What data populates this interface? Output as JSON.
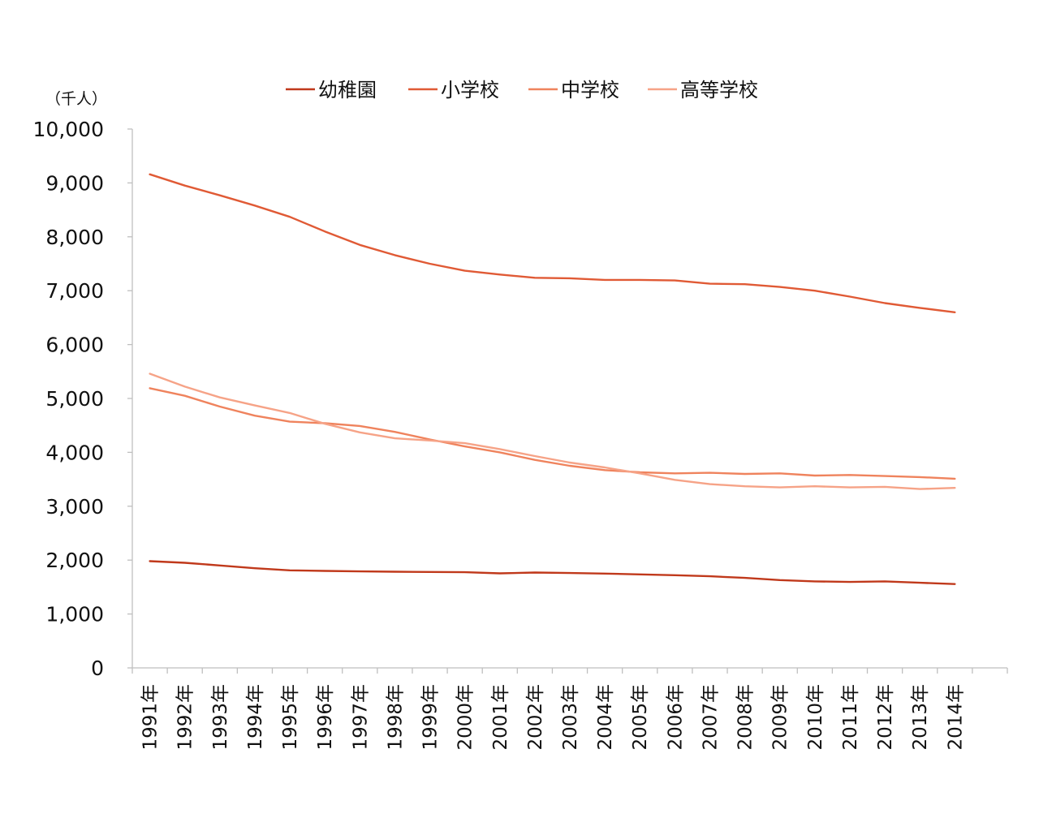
{
  "chart_data": {
    "type": "line",
    "unit_label": "（千人）",
    "ylim": [
      0,
      10000
    ],
    "y_ticks": [
      "0",
      "1,000",
      "2,000",
      "3,000",
      "4,000",
      "5,000",
      "6,000",
      "7,000",
      "8,000",
      "9,000",
      "10,000"
    ],
    "y_tick_values": [
      0,
      1000,
      2000,
      3000,
      4000,
      5000,
      6000,
      7000,
      8000,
      9000,
      10000
    ],
    "categories": [
      "1991年",
      "1992年",
      "1993年",
      "1994年",
      "1995年",
      "1996年",
      "1997年",
      "1998年",
      "1999年",
      "2000年",
      "2001年",
      "2002年",
      "2003年",
      "2004年",
      "2005年",
      "2006年",
      "2007年",
      "2008年",
      "2009年",
      "2010年",
      "2011年",
      "2012年",
      "2013年",
      "2014年"
    ],
    "grid": false,
    "legend_position": "top",
    "series": [
      {
        "name": "幼稚園",
        "color": "#c0391b",
        "values": [
          1980,
          1950,
          1900,
          1850,
          1810,
          1800,
          1790,
          1785,
          1780,
          1775,
          1755,
          1770,
          1760,
          1750,
          1735,
          1720,
          1700,
          1670,
          1630,
          1605,
          1595,
          1605,
          1580,
          1555
        ]
      },
      {
        "name": "小学校",
        "color": "#e05a35",
        "values": [
          9160,
          8950,
          8770,
          8580,
          8370,
          8100,
          7850,
          7660,
          7500,
          7370,
          7300,
          7240,
          7230,
          7200,
          7200,
          7190,
          7130,
          7120,
          7070,
          7000,
          6890,
          6770,
          6680,
          6600
        ]
      },
      {
        "name": "中学校",
        "color": "#ef835d",
        "values": [
          5190,
          5050,
          4850,
          4680,
          4570,
          4540,
          4490,
          4380,
          4240,
          4110,
          4000,
          3860,
          3750,
          3670,
          3630,
          3610,
          3620,
          3600,
          3610,
          3570,
          3580,
          3560,
          3540,
          3510
        ]
      },
      {
        "name": "高等学校",
        "color": "#f6a387",
        "values": [
          5460,
          5220,
          5020,
          4870,
          4730,
          4530,
          4370,
          4260,
          4220,
          4170,
          4060,
          3930,
          3810,
          3720,
          3610,
          3490,
          3410,
          3370,
          3350,
          3370,
          3350,
          3360,
          3320,
          3340
        ]
      }
    ]
  }
}
